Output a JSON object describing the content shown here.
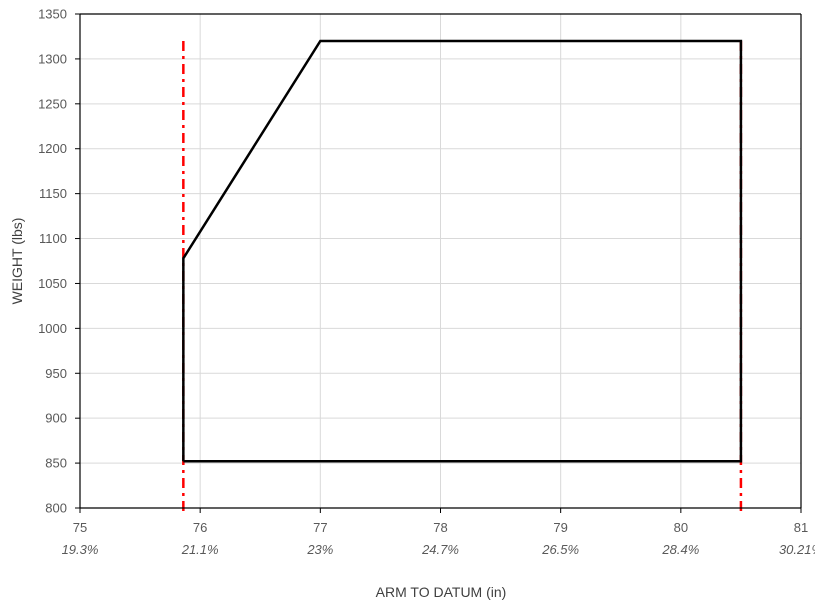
{
  "chart_data": {
    "type": "line",
    "xlabel": "ARM TO DATUM (in)",
    "ylabel": "WEIGHT (lbs)",
    "xlim": [
      75,
      81
    ],
    "ylim": [
      800,
      1350
    ],
    "x_ticks": [
      75,
      76,
      77,
      78,
      79,
      80,
      81
    ],
    "y_ticks": [
      800,
      850,
      900,
      950,
      1000,
      1050,
      1100,
      1150,
      1200,
      1250,
      1300,
      1350
    ],
    "secondary_x_labels": [
      "19.3%",
      "21.1%",
      "23%",
      "24.7%",
      "26.5%",
      "28.4%",
      "30.21%"
    ],
    "grid": true,
    "envelope": {
      "x": [
        75.86,
        75.86,
        77.0,
        80.5,
        80.5,
        75.86
      ],
      "y": [
        852,
        1078,
        1320,
        1320,
        852,
        852
      ],
      "color": "#000000"
    },
    "limit_lines": {
      "x": [
        75.86,
        80.5
      ],
      "color": "#ff0000"
    }
  }
}
